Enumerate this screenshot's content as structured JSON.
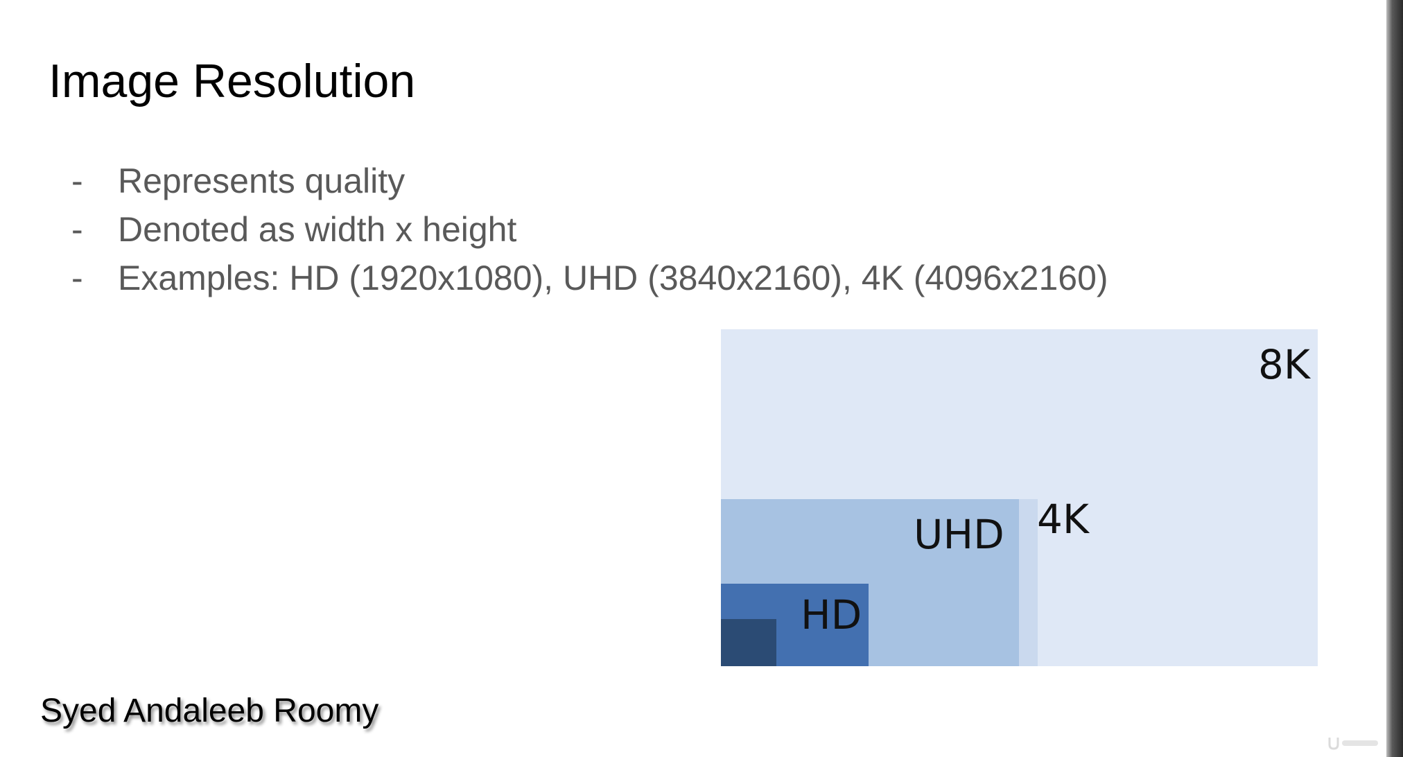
{
  "slide": {
    "title": "Image Resolution",
    "bullet_marker": "-",
    "bullets": [
      "Represents quality",
      "Denoted as width x height",
      "Examples: HD (1920x1080), UHD (3840x2160), 4K (4096x2160)"
    ],
    "diagram": {
      "labels": {
        "k8": "8K",
        "k4": "4K",
        "uhd": "UHD",
        "hd": "HD"
      },
      "colors": {
        "k8": "#dfe8f6",
        "k4": "#cad9ee",
        "uhd": "#a7c2e2",
        "hd": "#4370b0",
        "sd": "#2b4b74"
      }
    },
    "author": "Syed Andaleeb Roomy"
  },
  "watermark": {
    "icon": "udemy-logo-icon"
  }
}
